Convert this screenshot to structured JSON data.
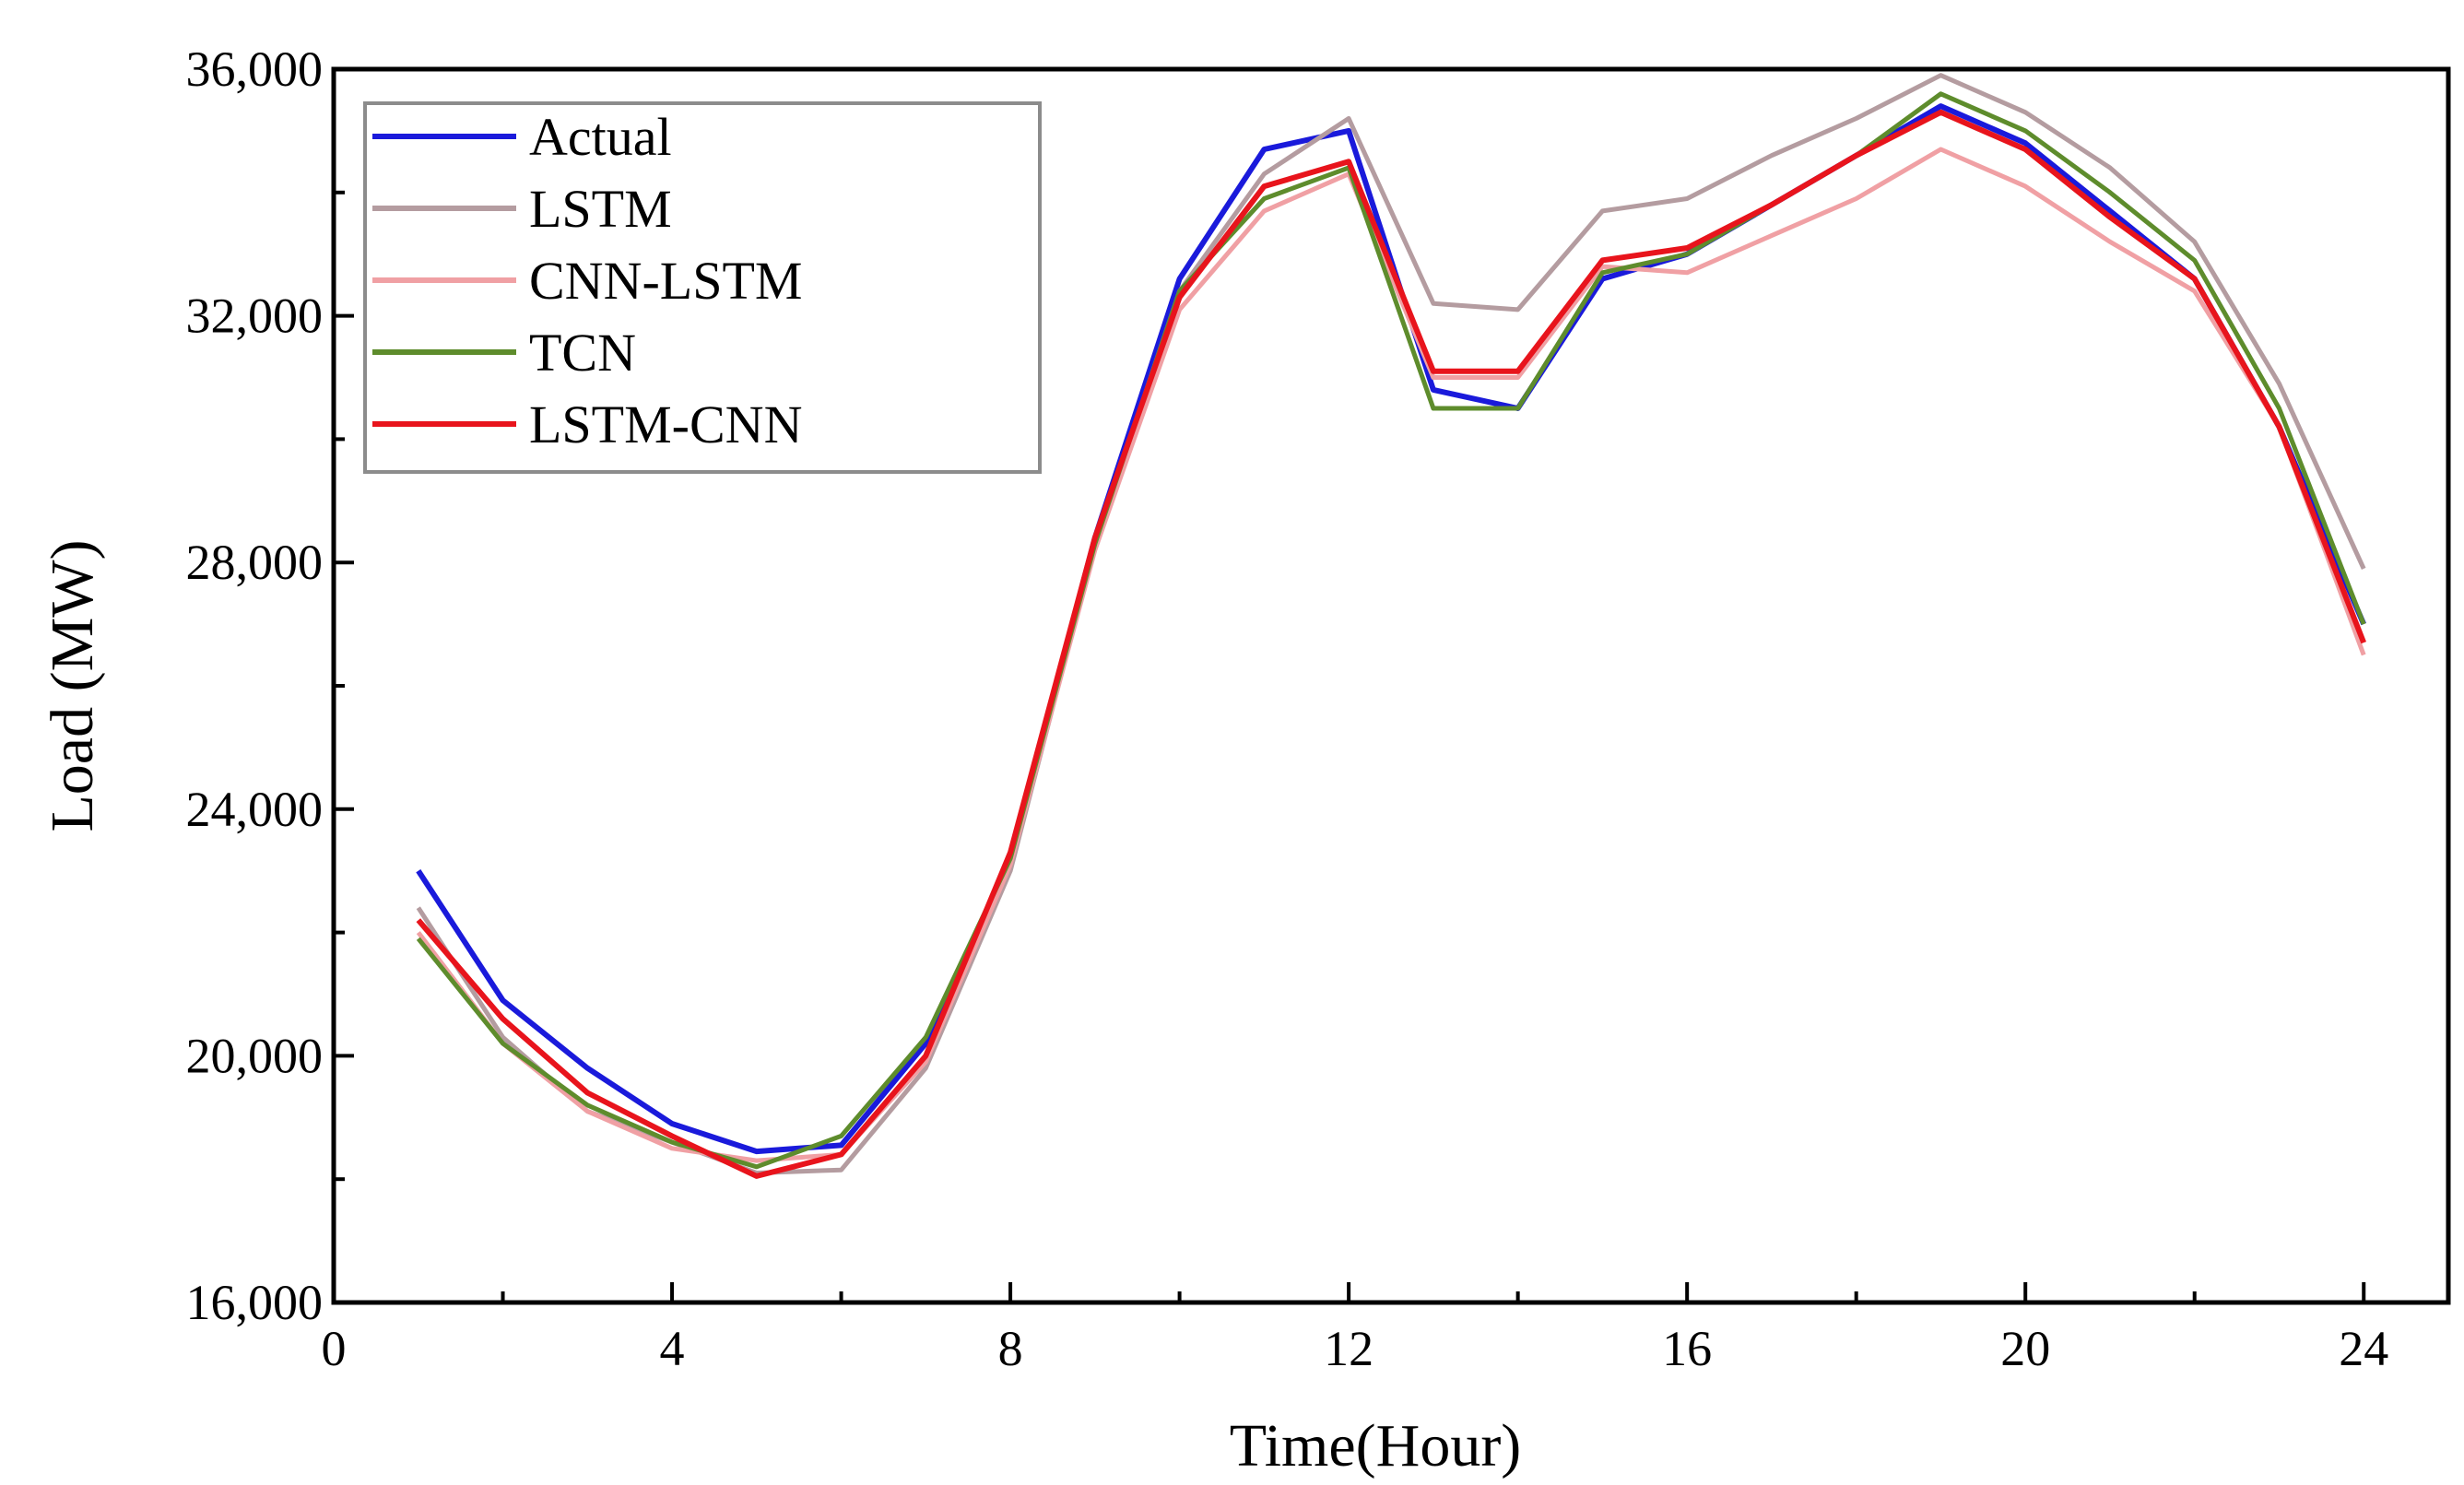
{
  "chart_data": {
    "type": "line",
    "title": "",
    "xlabel": "Time(Hour)",
    "ylabel": "Load (MW)",
    "xlim": [
      0,
      25
    ],
    "ylim": [
      16000,
      36000
    ],
    "xticks": [
      0,
      4,
      8,
      12,
      16,
      20,
      24
    ],
    "xtick_labels": [
      "0",
      "4",
      "8",
      "12",
      "16",
      "20",
      "24"
    ],
    "yticks": [
      16000,
      20000,
      24000,
      28000,
      32000,
      36000
    ],
    "ytick_labels": [
      "16,000",
      "20,000",
      "24,000",
      "28,000",
      "32,000",
      "36,000"
    ],
    "grid": false,
    "legend_position": "top-left",
    "x": [
      1,
      2,
      3,
      4,
      5,
      6,
      7,
      8,
      9,
      10,
      11,
      12,
      13,
      14,
      15,
      16,
      17,
      18,
      19,
      20,
      21,
      22,
      23,
      24
    ],
    "series": [
      {
        "name": "Actual",
        "color": "#1a1adb",
        "values": [
          23000,
          20900,
          19800,
          18900,
          18450,
          18550,
          20200,
          23200,
          28400,
          32600,
          34700,
          35000,
          30800,
          30500,
          32600,
          33000,
          33800,
          34600,
          35400,
          34800,
          33700,
          32600,
          30200,
          27000
        ]
      },
      {
        "name": "LSTM",
        "color": "#b49ca0",
        "values": [
          22400,
          20300,
          19100,
          18600,
          18100,
          18150,
          19800,
          23000,
          28300,
          32400,
          34300,
          35200,
          32200,
          32100,
          33700,
          33900,
          34600,
          35200,
          35900,
          35300,
          34400,
          33200,
          30900,
          27900
        ]
      },
      {
        "name": "CNN-LSTM",
        "color": "#f0a0a4",
        "values": [
          22000,
          20200,
          19100,
          18500,
          18300,
          18400,
          19900,
          23100,
          28200,
          32100,
          33700,
          34300,
          31000,
          31000,
          32800,
          32700,
          33300,
          33900,
          34700,
          34100,
          33200,
          32400,
          30200,
          26500
        ]
      },
      {
        "name": "TCN",
        "color": "#5e8c2c",
        "values": [
          21900,
          20200,
          19200,
          18600,
          18200,
          18700,
          20300,
          23200,
          28300,
          32400,
          33900,
          34400,
          30500,
          30500,
          32700,
          33000,
          33800,
          34600,
          35600,
          35000,
          34000,
          32900,
          30500,
          27000
        ]
      },
      {
        "name": "LSTM-CNN",
        "color": "#e8141c",
        "values": [
          22200,
          20600,
          19400,
          18700,
          18050,
          18400,
          20000,
          23300,
          28400,
          32300,
          34100,
          34500,
          31100,
          31100,
          32900,
          33100,
          33800,
          34600,
          35300,
          34700,
          33600,
          32600,
          30200,
          26700
        ]
      }
    ]
  }
}
